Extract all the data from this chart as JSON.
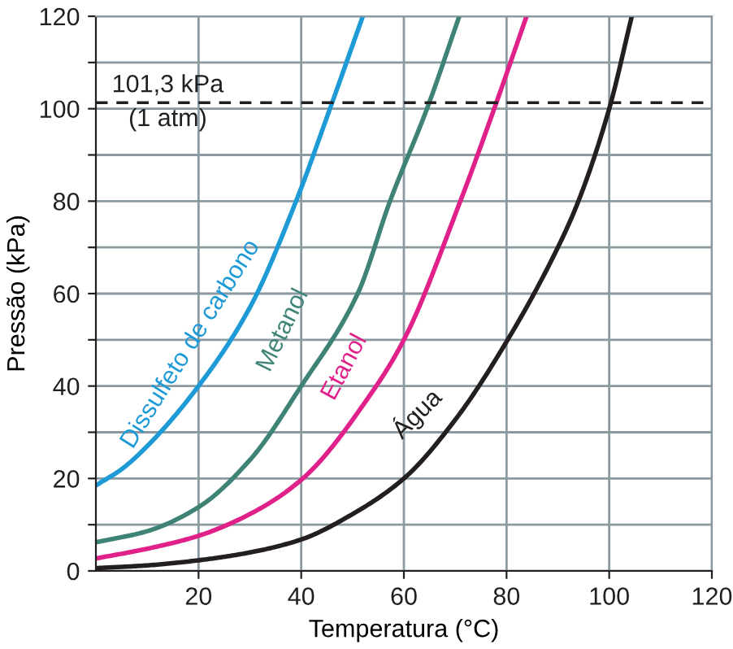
{
  "chart_data": {
    "type": "line",
    "xlabel": "Temperatura (°C)",
    "ylabel": "Pressão (kPa)",
    "xlim": [
      0,
      120
    ],
    "xticks": [
      20,
      40,
      60,
      80,
      100,
      120
    ],
    "ylim": [
      0,
      120
    ],
    "yticks": [
      0,
      {
        "value": 10,
        "label": null
      },
      20,
      {
        "value": 30,
        "label": null
      },
      40,
      {
        "value": 50,
        "label": null
      },
      60,
      {
        "value": 70,
        "label": null
      },
      80,
      {
        "value": 90,
        "label": null
      },
      100,
      {
        "value": 110,
        "label": null
      },
      120
    ],
    "grid": true,
    "line_style": "solid",
    "marker": "none",
    "ref_lines": [
      {
        "axis": "y",
        "value": 101.3,
        "label": "101,3 kPa\n(1 atm)",
        "color": "#231f20",
        "line_style": "dashed"
      }
    ],
    "series": [
      {
        "name": "Dissulfeto de carbono",
        "color": "#1e9ad6",
        "x": [
          0,
          5,
          10,
          20,
          30,
          39,
          45.6,
          52
        ],
        "values": [
          18.5,
          22,
          27,
          40,
          57,
          80,
          100,
          120
        ]
      },
      {
        "name": "Metanol",
        "color": "#3f8377",
        "x": [
          0,
          10,
          20,
          30,
          40,
          51,
          57.3,
          64.5,
          70.8
        ],
        "values": [
          6.2,
          8.6,
          13.8,
          24,
          40,
          60,
          80,
          100,
          120
        ]
      },
      {
        "name": "Etanol",
        "color": "#e0218a",
        "x": [
          0,
          10,
          20,
          30,
          40,
          54,
          60,
          71,
          77.6,
          83.9
        ],
        "values": [
          2.7,
          4.8,
          7.6,
          12.3,
          19.7,
          39,
          50,
          80,
          100,
          120
        ]
      },
      {
        "name": "Água",
        "color": "#231f20",
        "x": [
          0,
          10,
          20,
          30,
          40,
          50,
          60,
          70,
          80,
          90,
          94,
          100,
          104.4
        ],
        "values": [
          0.6,
          1.2,
          2.3,
          4,
          6.8,
          12.3,
          20,
          32.7,
          49.6,
          70,
          80,
          100,
          120
        ]
      }
    ]
  }
}
